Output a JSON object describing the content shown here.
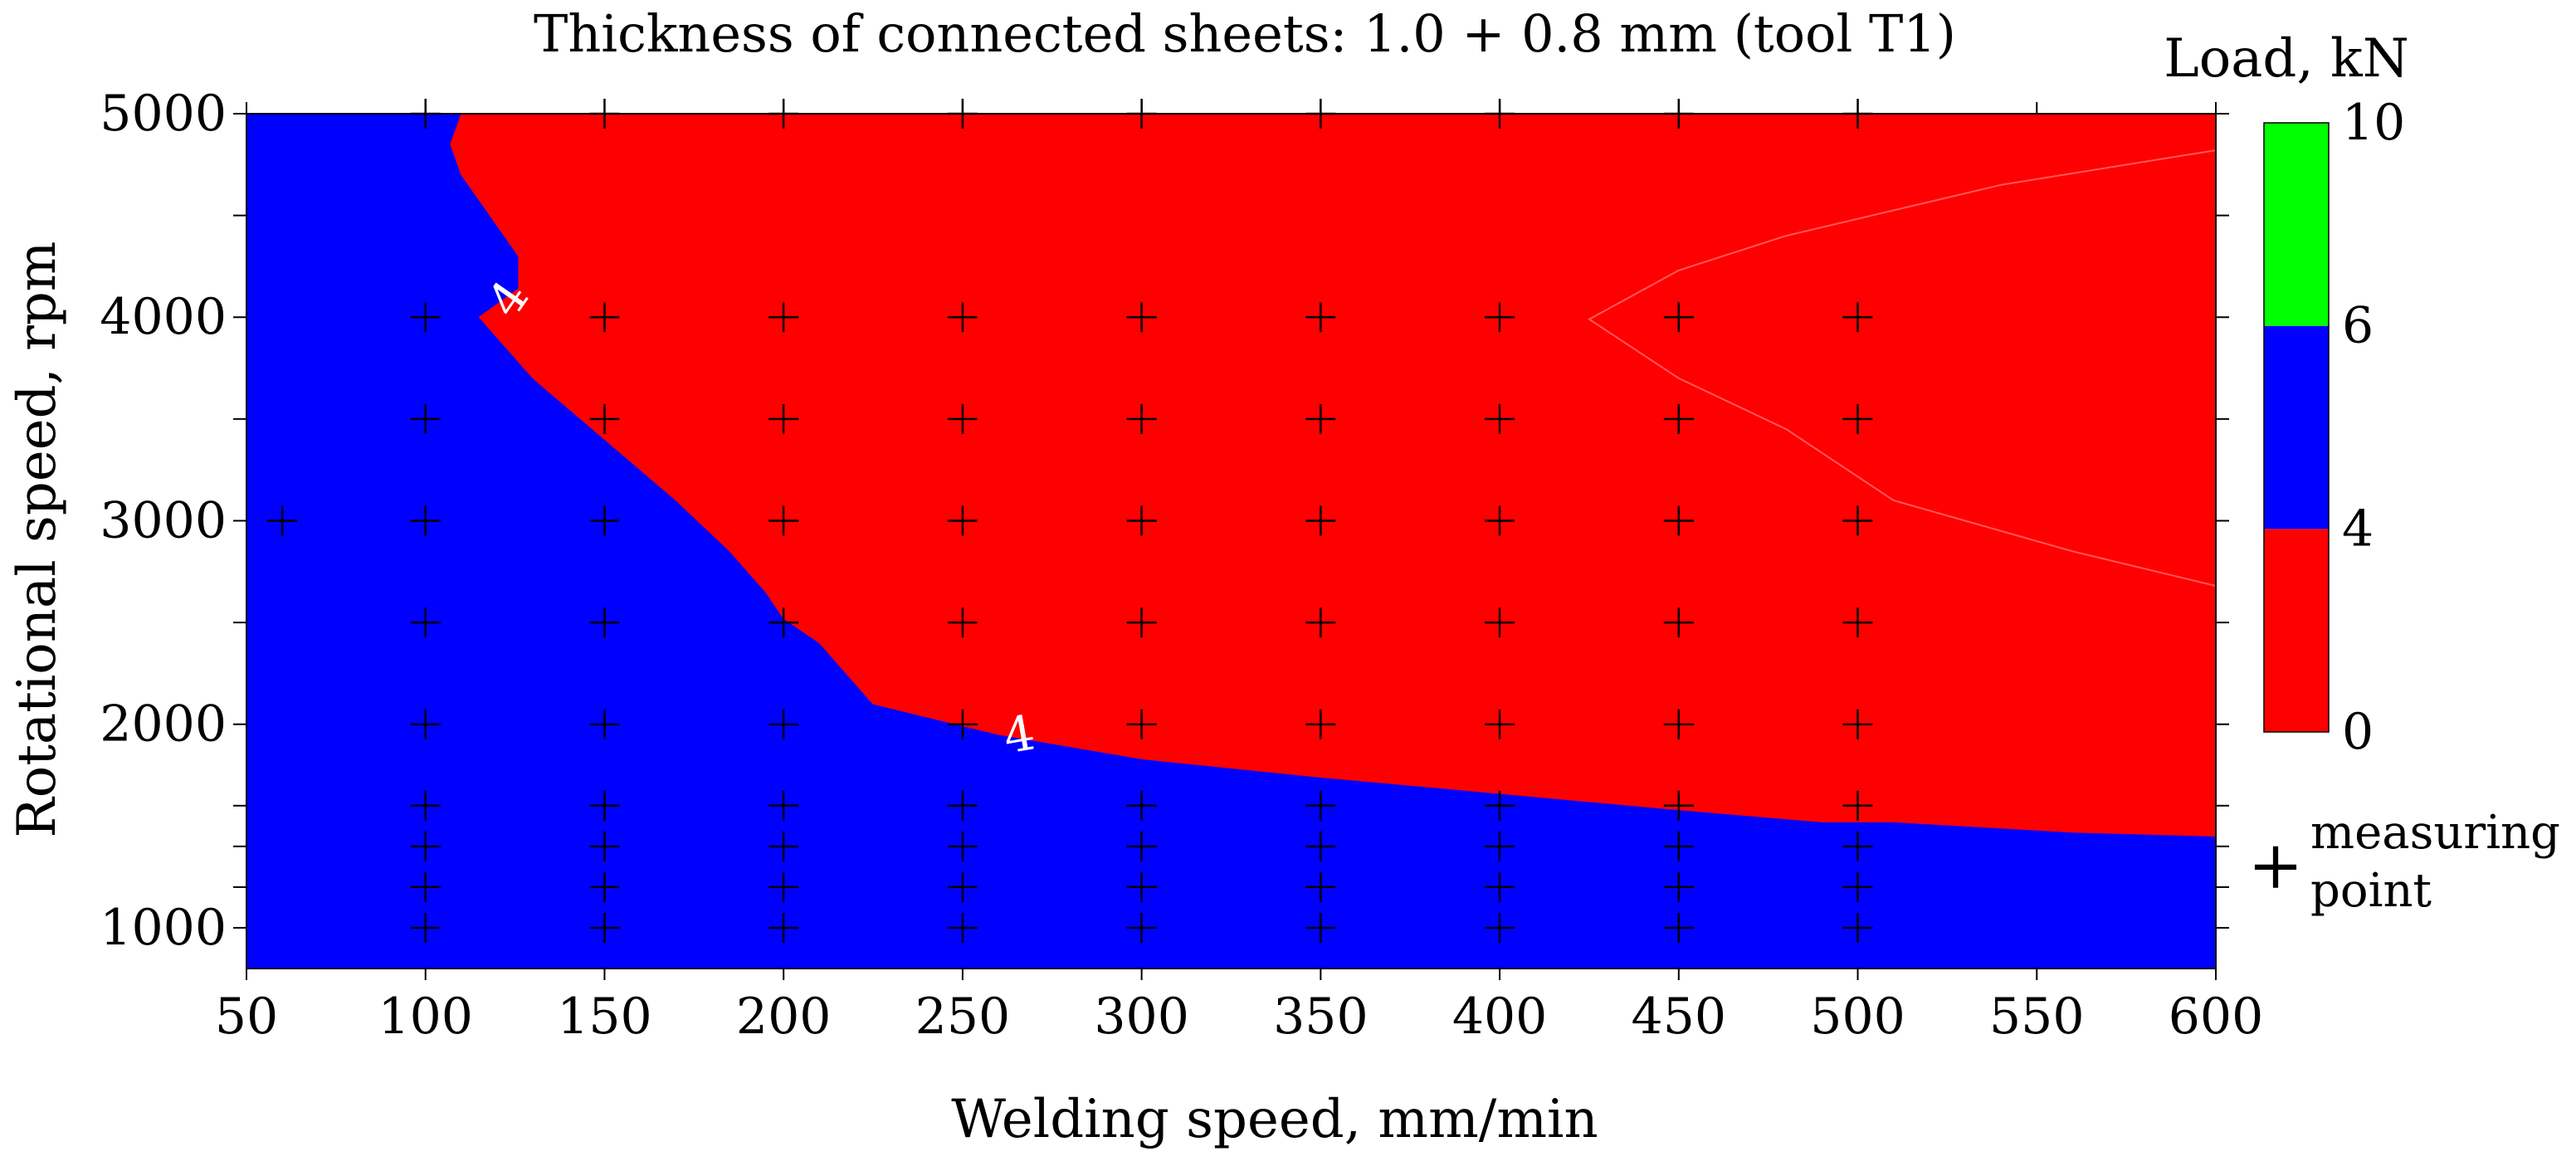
{
  "chart_data": {
    "type": "heatmap",
    "subtype": "filled-contour",
    "title": "Thickness of connected sheets: 1.0 + 0.8 mm (tool T1)",
    "xlabel": "Welding speed, mm/min",
    "ylabel": "Rotational speed, rpm",
    "xlim": [
      50,
      600
    ],
    "ylim": [
      800,
      5000
    ],
    "x_ticks": [
      50,
      100,
      150,
      200,
      250,
      300,
      350,
      400,
      450,
      500,
      550,
      600
    ],
    "y_ticks": [
      1000,
      2000,
      3000,
      4000,
      5000
    ],
    "y_minor_ticks": [
      1200,
      1400,
      1600,
      2500,
      3500,
      4500
    ],
    "grid": false,
    "colorbar": {
      "title": "Load, kN",
      "levels": [
        {
          "from": 0,
          "to": 4,
          "color": "#ff0000"
        },
        {
          "from": 4,
          "to": 6,
          "color": "#0000ff"
        },
        {
          "from": 6,
          "to": 10,
          "color": "#00ff00"
        }
      ],
      "tick_labels": [
        "0",
        "4",
        "6",
        "10"
      ],
      "tick_values": [
        0,
        4,
        6,
        10
      ],
      "placement": "right"
    },
    "regions": [
      {
        "level": "4-6",
        "color": "#0000ff",
        "label": "background"
      },
      {
        "level": "0-4",
        "color": "#ff0000",
        "boundary_4kN": [
          [
            110,
            5000
          ],
          [
            107,
            4850
          ],
          [
            110,
            4700
          ],
          [
            120,
            4450
          ],
          [
            126,
            4300
          ],
          [
            126,
            4140
          ],
          [
            115,
            4000
          ],
          [
            130,
            3700
          ],
          [
            150,
            3400
          ],
          [
            170,
            3100
          ],
          [
            185,
            2850
          ],
          [
            195,
            2650
          ],
          [
            200,
            2520
          ],
          [
            210,
            2400
          ],
          [
            225,
            2100
          ],
          [
            260,
            1950
          ],
          [
            300,
            1830
          ],
          [
            350,
            1740
          ],
          [
            400,
            1660
          ],
          [
            450,
            1580
          ],
          [
            490,
            1520
          ],
          [
            510,
            1520
          ],
          [
            560,
            1470
          ],
          [
            600,
            1450
          ],
          [
            600,
            5000
          ]
        ]
      }
    ],
    "inner_contour": [
      [
        600,
        4820
      ],
      [
        540,
        4650
      ],
      [
        480,
        4400
      ],
      [
        450,
        4230
      ],
      [
        425,
        3990
      ],
      [
        450,
        3700
      ],
      [
        480,
        3450
      ],
      [
        510,
        3100
      ],
      [
        560,
        2850
      ],
      [
        600,
        2680
      ]
    ],
    "contour_labels": [
      {
        "text": "4",
        "x": 124,
        "y": 4080,
        "rotation": -55
      },
      {
        "text": "4",
        "x": 266,
        "y": 1930,
        "rotation": -10
      }
    ],
    "measuring_points": {
      "x100": [
        1000,
        1200,
        1400,
        1600,
        2000,
        2500,
        3000,
        3500,
        4000,
        5000
      ],
      "x150": [
        1000,
        1200,
        1400,
        1600,
        2000,
        2500,
        3000,
        3500,
        4000,
        5000
      ],
      "x200": [
        1000,
        1200,
        1400,
        1600,
        2000,
        2500,
        3000,
        3500,
        4000,
        5000
      ],
      "x250": [
        1000,
        1200,
        1400,
        1600,
        2000,
        2500,
        3000,
        3500,
        4000,
        5000
      ],
      "x300": [
        1000,
        1200,
        1400,
        1600,
        2000,
        2500,
        3000,
        3500,
        4000,
        5000
      ],
      "x350": [
        1000,
        1200,
        1400,
        1600,
        2000,
        2500,
        3000,
        3500,
        4000,
        5000
      ],
      "x400": [
        1000,
        1200,
        1400,
        1600,
        2000,
        2500,
        3000,
        3500,
        4000,
        5000
      ],
      "x450": [
        1000,
        1200,
        1400,
        1600,
        2000,
        2500,
        3000,
        3500,
        4000,
        5000
      ],
      "x500": [
        1000,
        1200,
        1400,
        1600,
        2000,
        2500,
        3000,
        3500,
        4000,
        5000
      ],
      "extra": [
        [
          60,
          3000
        ]
      ]
    },
    "legend": {
      "symbol": "+",
      "text_line1": "measuring",
      "text_line2": "point",
      "placement": "right"
    }
  }
}
